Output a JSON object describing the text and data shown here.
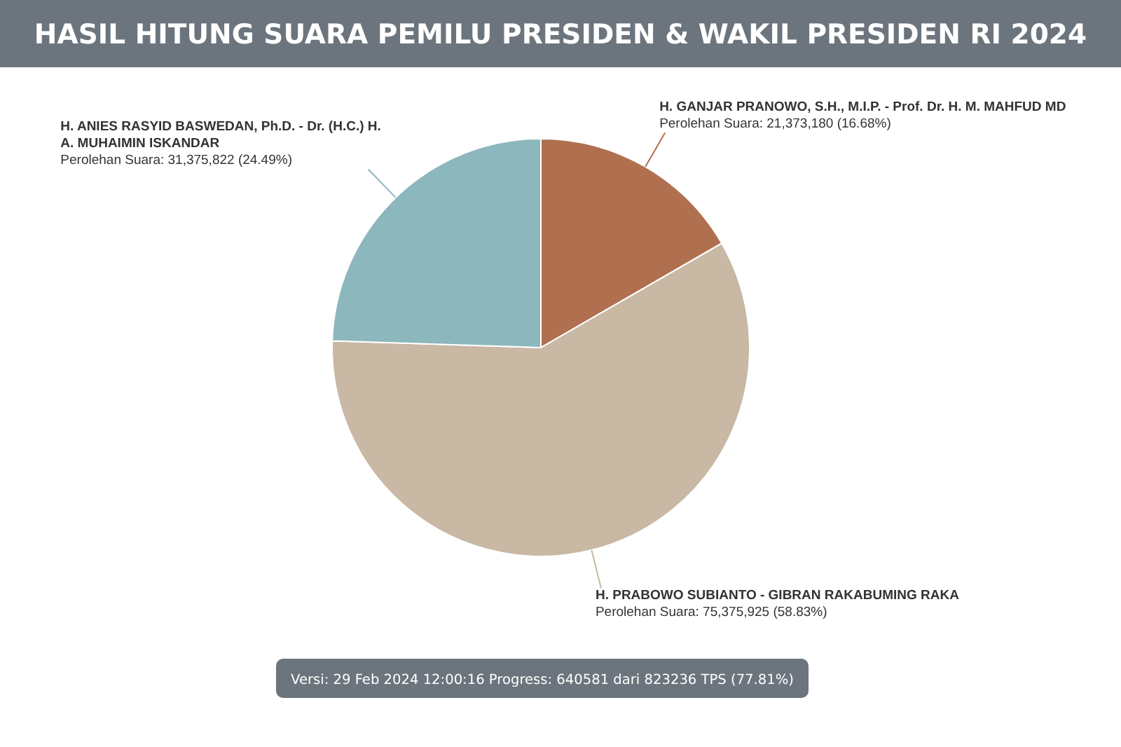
{
  "chart_data": {
    "type": "pie",
    "title": "HASIL HITUNG SUARA PEMILU PRESIDEN & WAKIL PRESIDEN RI 2024",
    "categories": [
      "H. GANJAR PRANOWO, S.H., M.I.P. - Prof. Dr. H. M. MAHFUD MD",
      "H. PRABOWO SUBIANTO - GIBRAN RAKABUMING RAKA",
      "H. ANIES RASYID BASWEDAN, Ph.D. - Dr. (H.C.) H. A. MUHAIMIN ISKANDAR"
    ],
    "values": [
      21373180,
      75375925,
      31375822
    ],
    "colors": [
      "#b07050",
      "#c8b8a4",
      "#8cb7bc"
    ],
    "value_labels": [
      "Perolehan Suara: 21,373,180 (16.68%)",
      "Perolehan Suara: 75,375,925 (58.83%)",
      "Perolehan Suara: 31,375,822 (24.49%)"
    ],
    "annotations": [
      "Versi: 29 Feb 2024 12:00:16 Progress: 640581 dari 823236 TPS (77.81%)"
    ]
  }
}
